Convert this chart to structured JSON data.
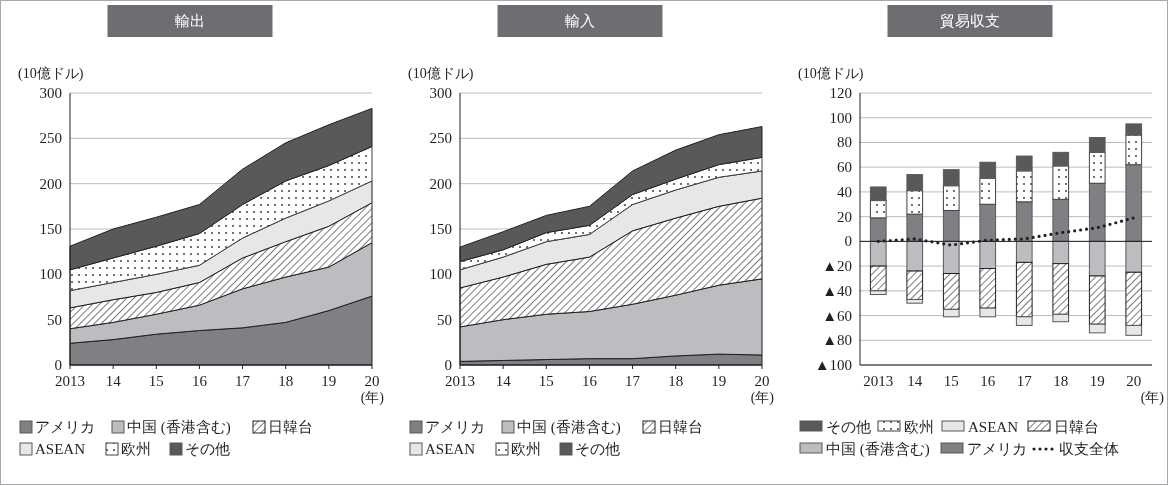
{
  "chart_data": [
    {
      "type": "area",
      "stacked": true,
      "title": "輸出",
      "ylabel": "(10億ドル)",
      "xlabel": "(年)",
      "categories": [
        "2013",
        "14",
        "15",
        "16",
        "17",
        "18",
        "19",
        "20"
      ],
      "ylim": [
        0,
        300
      ],
      "yticks": [
        0,
        50,
        100,
        150,
        200,
        250,
        300
      ],
      "grid": "y",
      "legend": "bottom",
      "series": [
        {
          "name": "アメリカ",
          "color": "#7f8083",
          "values": [
            24,
            28,
            34,
            38,
            41,
            47,
            60,
            76
          ]
        },
        {
          "name": "中国 (香港含む)",
          "color": "#bcbdc0",
          "values": [
            16,
            19,
            22,
            28,
            43,
            50,
            48,
            59
          ]
        },
        {
          "name": "日韓台",
          "color": "#231f20",
          "values": [
            23,
            25,
            24,
            25,
            34,
            39,
            45,
            44
          ]
        },
        {
          "name": "ASEAN",
          "color": "#e6e7e8",
          "values": [
            19,
            19,
            20,
            19,
            22,
            26,
            28,
            24
          ]
        },
        {
          "name": "欧州",
          "color": "#414042",
          "values": [
            23,
            27,
            31,
            35,
            37,
            41,
            39,
            38
          ]
        },
        {
          "name": "その他",
          "color": "#58595b",
          "values": [
            26,
            32,
            32,
            32,
            39,
            42,
            45,
            42
          ]
        }
      ]
    },
    {
      "type": "area",
      "stacked": true,
      "title": "輸入",
      "ylabel": "(10億ドル)",
      "xlabel": "(年)",
      "categories": [
        "2013",
        "14",
        "15",
        "16",
        "17",
        "18",
        "19",
        "20"
      ],
      "ylim": [
        0,
        300
      ],
      "yticks": [
        0,
        50,
        100,
        150,
        200,
        250,
        300
      ],
      "grid": "y",
      "legend": "bottom",
      "series": [
        {
          "name": "アメリカ",
          "color": "#7f8083",
          "values": [
            4,
            5,
            6,
            7,
            7,
            10,
            12,
            11
          ]
        },
        {
          "name": "中国 (香港含む)",
          "color": "#bcbdc0",
          "values": [
            38,
            45,
            50,
            52,
            60,
            67,
            76,
            84
          ]
        },
        {
          "name": "日韓台",
          "color": "#231f20",
          "values": [
            43,
            47,
            55,
            60,
            81,
            85,
            87,
            89
          ]
        },
        {
          "name": "ASEAN",
          "color": "#e6e7e8",
          "values": [
            20,
            22,
            25,
            25,
            29,
            31,
            32,
            30
          ]
        },
        {
          "name": "欧州",
          "color": "#414042",
          "values": [
            9,
            8,
            10,
            10,
            11,
            12,
            14,
            15
          ]
        },
        {
          "name": "その他",
          "color": "#58595b",
          "values": [
            16,
            20,
            19,
            21,
            26,
            32,
            33,
            34
          ]
        }
      ]
    },
    {
      "type": "bar",
      "stacked": true,
      "title": "貿易収支",
      "ylabel": "(10億ドル)",
      "xlabel": "(年)",
      "categories": [
        "2013",
        "14",
        "15",
        "16",
        "17",
        "18",
        "19",
        "20"
      ],
      "ylim": [
        -100,
        120
      ],
      "yticks": [
        {
          "value": -100,
          "label": "▲100"
        },
        {
          "value": -80,
          "label": "▲80"
        },
        {
          "value": -60,
          "label": "▲60"
        },
        {
          "value": -40,
          "label": "▲40"
        },
        {
          "value": -20,
          "label": "▲20"
        },
        0,
        20,
        40,
        60,
        80,
        100,
        120
      ],
      "grid": "y",
      "legend": "bottom",
      "series": [
        {
          "name": "アメリカ",
          "color": "#7f8083",
          "values": [
            19,
            22,
            25,
            30,
            32,
            34,
            47,
            62
          ]
        },
        {
          "name": "中国 (香港含む)",
          "color": "#bcbdc0",
          "values": [
            -20,
            -24,
            -26,
            -22,
            -17,
            -18,
            -28,
            -25
          ]
        },
        {
          "name": "日韓台",
          "color": "#231f20",
          "values": [
            -20,
            -23,
            -29,
            -32,
            -44,
            -41,
            -39,
            -43
          ]
        },
        {
          "name": "ASEAN",
          "color": "#e6e7e8",
          "values": [
            -3,
            -3,
            -6,
            -7,
            -7,
            -6,
            -7,
            -8
          ]
        },
        {
          "name": "欧州",
          "color": "#414042",
          "values": [
            14,
            19,
            20,
            21,
            25,
            27,
            25,
            24
          ]
        },
        {
          "name": "その他",
          "color": "#58595b",
          "values": [
            11,
            13,
            13,
            13,
            12,
            11,
            12,
            9
          ]
        },
        {
          "name": "収支全体",
          "type": "line",
          "color": "#231f20",
          "line_style": "dotted",
          "values": [
            0,
            2,
            -3,
            1,
            2,
            7,
            11,
            19
          ]
        }
      ]
    }
  ]
}
